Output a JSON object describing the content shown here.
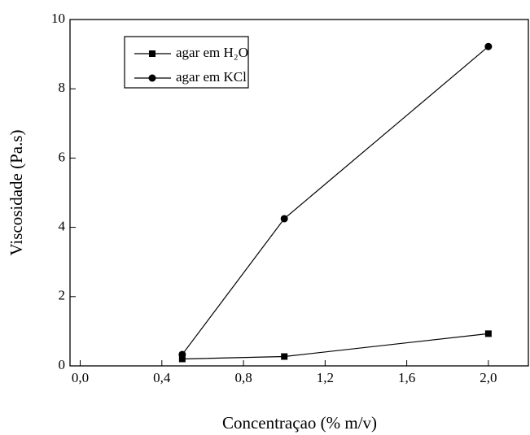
{
  "chart_data": {
    "type": "line",
    "x_label": "Concentraçao (% m/v)",
    "y_label": "Viscosidade (Pa.s)",
    "xlim": [
      -0.05,
      2.2
    ],
    "ylim": [
      0,
      10
    ],
    "xticks": [
      {
        "value": 0,
        "label": "0,0"
      },
      {
        "value": 0.4,
        "label": "0,4"
      },
      {
        "value": 0.8,
        "label": "0,8"
      },
      {
        "value": 1.2,
        "label": "1,2"
      },
      {
        "value": 1.6,
        "label": "1,6"
      },
      {
        "value": 2.0,
        "label": "2,0"
      }
    ],
    "yticks": [
      0,
      2,
      4,
      6,
      8,
      10
    ],
    "x": [
      0.5,
      1.0,
      2.0
    ],
    "series": [
      {
        "name": "agar em H₂O",
        "color": "#000000",
        "marker": "square",
        "values": [
          0.2,
          0.27,
          0.93
        ]
      },
      {
        "name": "agar em KCl",
        "color": "#000000",
        "marker": "circle",
        "values": [
          0.33,
          4.25,
          9.22
        ]
      }
    ]
  }
}
